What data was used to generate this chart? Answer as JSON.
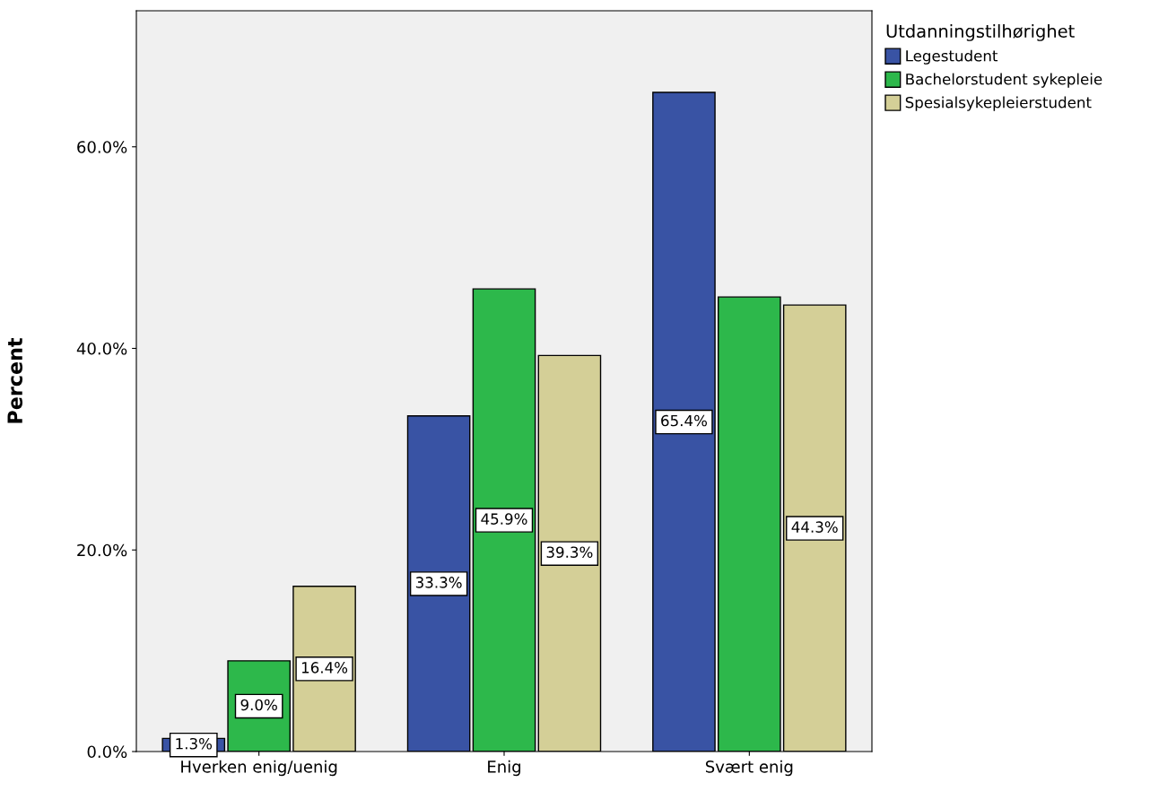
{
  "chart_data": {
    "type": "bar",
    "ylabel": "Percent",
    "legend_title": "Utdanningstilhørighet",
    "legend": "top right",
    "categories": [
      "Hverken enig/uenig",
      "Enig",
      "Svært enig"
    ],
    "series": [
      {
        "name": "Legestudent",
        "color": "#3953a4",
        "values": [
          1.3,
          33.3,
          65.4
        ],
        "value_labels": [
          "1.3%",
          "33.3%",
          "65.4%"
        ]
      },
      {
        "name": "Bachelorstudent sykepleie",
        "color": "#2db84b",
        "values": [
          9.0,
          45.9,
          45.1
        ],
        "value_labels": [
          "9.0%",
          "45.9%",
          null
        ]
      },
      {
        "name": "Spesialsykepleierstudent",
        "color": "#d4cf97",
        "values": [
          16.4,
          39.3,
          44.3
        ],
        "value_labels": [
          "16.4%",
          "39.3%",
          "44.3%"
        ]
      }
    ],
    "ylim": [
      0,
      73.5
    ],
    "yticks": [
      {
        "value": 0,
        "label": "0.0%"
      },
      {
        "value": 20,
        "label": "20.0%"
      },
      {
        "value": 40,
        "label": "40.0%"
      },
      {
        "value": 60,
        "label": "60.0%"
      }
    ],
    "grid": false
  }
}
